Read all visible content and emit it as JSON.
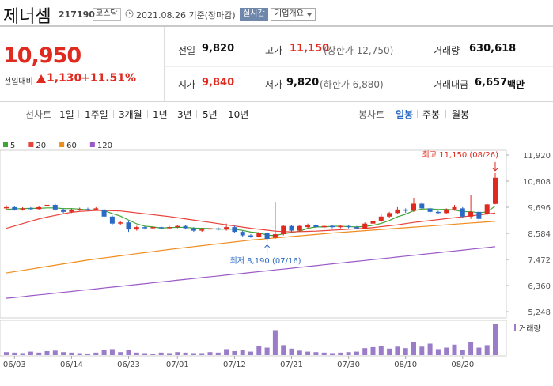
{
  "header": {
    "name": "제너셈",
    "code": "217190",
    "market": "코스닥",
    "date": "2021.08.26 기준(장마감)",
    "realtime": "실시간",
    "overview": "기업개요"
  },
  "quote": {
    "price": "10,950",
    "change_label": "전일대비",
    "change": "1,130",
    "change_rate": "+11.51%"
  },
  "stats": [
    [
      {
        "label": "전일",
        "value": "9,820"
      },
      {
        "label": "고가",
        "value": "11,150",
        "note": "(상한가 12,750)"
      },
      {
        "label": "거래량",
        "value": "630,618"
      }
    ],
    [
      {
        "label": "시가",
        "value": "9,840"
      },
      {
        "label": "저가",
        "value": "9,820",
        "note": "(하한가 6,880)"
      },
      {
        "label": "거래대금",
        "value": "6,657",
        "unit": "백만"
      }
    ]
  ],
  "tabs": {
    "line_chart": {
      "label": "선차트",
      "periods": [
        "1일",
        "1주일",
        "3개월",
        "1년",
        "3년",
        "5년",
        "10년"
      ]
    },
    "candle_chart": {
      "label": "봉차트",
      "periods": [
        "일봉",
        "주봉",
        "월봉"
      ]
    }
  },
  "chart_data": {
    "type": "candlestick",
    "categories": [
      null,
      "06/03",
      null,
      null,
      null,
      null,
      null,
      null,
      "06/14",
      null,
      null,
      null,
      null,
      null,
      null,
      "06/23",
      null,
      null,
      null,
      null,
      null,
      "07/01",
      null,
      null,
      null,
      null,
      null,
      null,
      "07/12",
      null,
      null,
      null,
      null,
      null,
      null,
      "07/21",
      null,
      null,
      null,
      null,
      null,
      null,
      "07/30",
      null,
      null,
      null,
      null,
      null,
      null,
      "08/10",
      null,
      null,
      null,
      null,
      null,
      null,
      "08/20",
      null,
      null,
      null,
      null
    ],
    "open": [
      9650,
      9700,
      9600,
      9650,
      9620,
      9750,
      9800,
      9600,
      9500,
      9600,
      9620,
      9600,
      9600,
      9300,
      9000,
      9050,
      8750,
      8850,
      8800,
      8850,
      8800,
      8850,
      8900,
      8800,
      8700,
      8750,
      8800,
      8750,
      8850,
      8650,
      8500,
      8450,
      8600,
      8400,
      8550,
      8900,
      8700,
      8850,
      8950,
      8850,
      8900,
      8850,
      8900,
      8850,
      8800,
      9000,
      9100,
      9300,
      9450,
      9600,
      9550,
      9850,
      9650,
      9500,
      9450,
      9600,
      9650,
      9300,
      9500,
      9400,
      9840
    ],
    "high": [
      9780,
      9760,
      9700,
      9700,
      9750,
      9900,
      9850,
      9650,
      9650,
      9680,
      9680,
      9700,
      9650,
      9350,
      9100,
      9100,
      8900,
      8900,
      8900,
      8900,
      8900,
      8950,
      8950,
      8850,
      8800,
      8850,
      8850,
      9000,
      8900,
      8700,
      8550,
      8650,
      8650,
      9900,
      8950,
      8950,
      8950,
      9000,
      9000,
      8950,
      8950,
      8950,
      8950,
      8900,
      9050,
      9150,
      9400,
      9500,
      9700,
      9650,
      10100,
      9900,
      9700,
      9550,
      9650,
      9800,
      9700,
      10200,
      9550,
      9850,
      11150
    ],
    "low": [
      9600,
      9550,
      9550,
      9580,
      9600,
      9700,
      9550,
      9450,
      9450,
      9550,
      9550,
      9550,
      9250,
      8950,
      8950,
      8650,
      8700,
      8750,
      8750,
      8750,
      8750,
      8800,
      8750,
      8650,
      8650,
      8700,
      8700,
      8700,
      8600,
      8450,
      8400,
      8400,
      8190,
      8350,
      8500,
      8650,
      8650,
      8800,
      8800,
      8800,
      8800,
      8800,
      8800,
      8750,
      8750,
      8950,
      9050,
      9250,
      9400,
      9450,
      9500,
      9600,
      9450,
      9400,
      9400,
      9550,
      9250,
      9200,
      9100,
      9350,
      9820
    ],
    "close": [
      9700,
      9600,
      9650,
      9620,
      9700,
      9800,
      9600,
      9500,
      9600,
      9620,
      9600,
      9650,
      9300,
      9000,
      9050,
      8750,
      8850,
      8800,
      8850,
      8800,
      8850,
      8900,
      8800,
      8700,
      8750,
      8800,
      8750,
      8850,
      8650,
      8500,
      8450,
      8600,
      8350,
      8550,
      8900,
      8700,
      8900,
      8950,
      8850,
      8900,
      8850,
      8900,
      8850,
      8800,
      9000,
      9100,
      9300,
      9450,
      9600,
      9550,
      9850,
      9650,
      9500,
      9450,
      9600,
      9700,
      9300,
      9500,
      9200,
      9820,
      10950
    ],
    "up_color": "#e0291f",
    "down_color": "#2b6ac4",
    "series": [
      {
        "name": "5",
        "color": "#3fa535",
        "values": [
          9600,
          9630,
          9640,
          9650,
          9650,
          9670,
          9670,
          9640,
          9640,
          9620,
          9580,
          9590,
          9550,
          9430,
          9320,
          9150,
          8990,
          8890,
          8860,
          8810,
          8830,
          8840,
          8840,
          8810,
          8800,
          8790,
          8760,
          8770,
          8760,
          8710,
          8640,
          8610,
          8510,
          8490,
          8570,
          8620,
          8680,
          8800,
          8860,
          8860,
          8890,
          8890,
          8870,
          8860,
          8880,
          8930,
          9010,
          9130,
          9290,
          9400,
          9550,
          9620,
          9630,
          9600,
          9610,
          9580,
          9510,
          9510,
          9460,
          9500,
          9750
        ]
      },
      {
        "name": "20",
        "color": "#e8423b",
        "values": [
          8800,
          8900,
          9000,
          9100,
          9200,
          9280,
          9350,
          9420,
          9480,
          9520,
          9540,
          9560,
          9560,
          9550,
          9540,
          9500,
          9460,
          9420,
          9380,
          9340,
          9300,
          9250,
          9200,
          9150,
          9100,
          9050,
          9000,
          8950,
          8900,
          8850,
          8800,
          8760,
          8720,
          8680,
          8660,
          8650,
          8660,
          8670,
          8680,
          8700,
          8720,
          8740,
          8760,
          8780,
          8800,
          8830,
          8870,
          8910,
          8950,
          9000,
          9050,
          9090,
          9130,
          9170,
          9210,
          9250,
          9290,
          9330,
          9370,
          9410,
          9450
        ]
      },
      {
        "name": "60",
        "color": "#f08c1e",
        "values": [
          6900,
          6955,
          7010,
          7065,
          7120,
          7175,
          7230,
          7285,
          7340,
          7395,
          7450,
          7495,
          7540,
          7585,
          7630,
          7675,
          7720,
          7765,
          7810,
          7855,
          7900,
          7940,
          7980,
          8020,
          8060,
          8100,
          8140,
          8180,
          8220,
          8260,
          8300,
          8330,
          8360,
          8390,
          8420,
          8450,
          8480,
          8510,
          8540,
          8570,
          8600,
          8625,
          8650,
          8675,
          8700,
          8725,
          8750,
          8775,
          8800,
          8825,
          8850,
          8875,
          8900,
          8925,
          8950,
          8975,
          9000,
          9025,
          9050,
          9075,
          9100
        ]
      },
      {
        "name": "120",
        "color": "#9b59c6",
        "values": [
          5820,
          5855,
          5890,
          5930,
          5965,
          6000,
          6040,
          6075,
          6110,
          6150,
          6185,
          6220,
          6260,
          6295,
          6330,
          6370,
          6405,
          6440,
          6480,
          6515,
          6550,
          6590,
          6625,
          6660,
          6700,
          6735,
          6770,
          6810,
          6845,
          6880,
          6920,
          6955,
          6990,
          7030,
          7065,
          7100,
          7140,
          7175,
          7210,
          7250,
          7285,
          7320,
          7360,
          7395,
          7430,
          7470,
          7505,
          7540,
          7580,
          7615,
          7650,
          7690,
          7725,
          7760,
          7800,
          7835,
          7870,
          7910,
          7945,
          7980,
          8020
        ]
      }
    ],
    "ylim": [
      5050,
      12290
    ],
    "yticks": [
      {
        "value": 11920,
        "label": "11,920"
      },
      {
        "value": 10808,
        "label": "10,808"
      },
      {
        "value": 9696,
        "label": "9,696"
      },
      {
        "value": 8584,
        "label": "8,584"
      },
      {
        "value": 7472,
        "label": "7,472"
      },
      {
        "value": 6360,
        "label": "6,360"
      },
      {
        "value": 5248,
        "label": "5,248"
      }
    ],
    "annotations": [
      "최고 11,150 (08/26)",
      "최저 8,190 (07/16)"
    ],
    "volume": {
      "label": "거래량",
      "color": "#9a7cc9",
      "values": [
        60000,
        50000,
        40000,
        70000,
        50000,
        80000,
        90000,
        60000,
        50000,
        40000,
        30000,
        50000,
        100000,
        120000,
        60000,
        110000,
        50000,
        40000,
        30000,
        50000,
        40000,
        60000,
        50000,
        40000,
        40000,
        60000,
        50000,
        120000,
        80000,
        100000,
        70000,
        180000,
        150000,
        500000,
        200000,
        130000,
        90000,
        70000,
        60000,
        50000,
        40000,
        50000,
        60000,
        70000,
        140000,
        160000,
        180000,
        130000,
        170000,
        140000,
        260000,
        170000,
        230000,
        120000,
        150000,
        210000,
        100000,
        270000,
        150000,
        200000,
        630618
      ],
      "ylim": [
        0,
        650000
      ]
    }
  }
}
